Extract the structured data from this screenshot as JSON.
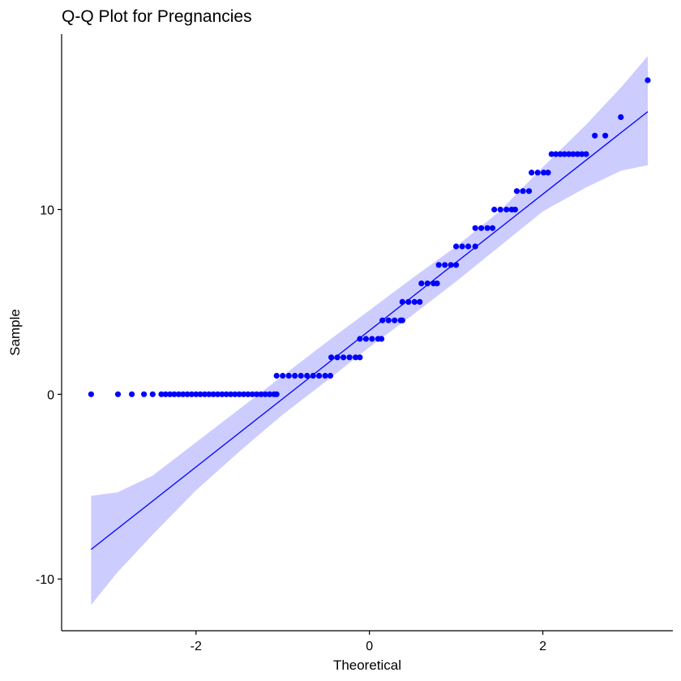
{
  "chart_data": {
    "type": "scatter",
    "title": "Q-Q Plot for Pregnancies",
    "xlabel": "Theoretical",
    "ylabel": "Sample",
    "xlim": [
      -3.55,
      3.5
    ],
    "ylim": [
      -12.8,
      19.5
    ],
    "x_ticks": [
      {
        "v": -2,
        "label": "-2"
      },
      {
        "v": 0,
        "label": "0"
      },
      {
        "v": 2,
        "label": "2"
      }
    ],
    "y_ticks": [
      {
        "v": -10,
        "label": "-10"
      },
      {
        "v": 0,
        "label": "0"
      },
      {
        "v": 10,
        "label": "10"
      }
    ],
    "grid": false,
    "colors": {
      "points": "#0000ff",
      "line": "#0000ff",
      "band": "#ccccff"
    },
    "reference_line": {
      "x": [
        -3.21,
        3.21
      ],
      "y": [
        -8.4,
        15.3
      ]
    },
    "confidence_band": {
      "x": [
        -3.21,
        -2.9,
        -2.5,
        -2.0,
        -1.5,
        -1.0,
        -0.5,
        0.0,
        0.5,
        1.0,
        1.5,
        2.0,
        2.5,
        2.9,
        3.21
      ],
      "lower": [
        -11.4,
        -9.6,
        -7.6,
        -5.2,
        -3.1,
        -1.1,
        0.7,
        2.55,
        4.3,
        6.1,
        8.0,
        9.9,
        11.2,
        12.1,
        12.4
      ],
      "upper": [
        -5.5,
        -5.3,
        -4.4,
        -2.6,
        -0.8,
        1.0,
        2.8,
        4.55,
        6.3,
        8.0,
        9.9,
        12.3,
        14.6,
        16.6,
        18.3
      ]
    },
    "series": [
      {
        "points": [
          [
            -3.21,
            0
          ],
          [
            -2.9,
            0
          ],
          [
            -2.74,
            0
          ],
          [
            -2.6,
            0
          ],
          [
            -2.5,
            0
          ],
          [
            -2.4,
            0
          ],
          [
            -2.35,
            0
          ],
          [
            -2.3,
            0
          ],
          [
            -2.25,
            0
          ],
          [
            -2.2,
            0
          ],
          [
            -2.15,
            0
          ],
          [
            -2.1,
            0
          ],
          [
            -2.05,
            0
          ],
          [
            -2.0,
            0
          ],
          [
            -1.95,
            0
          ],
          [
            -1.9,
            0
          ],
          [
            -1.85,
            0
          ],
          [
            -1.8,
            0
          ],
          [
            -1.75,
            0
          ],
          [
            -1.7,
            0
          ],
          [
            -1.65,
            0
          ],
          [
            -1.6,
            0
          ],
          [
            -1.55,
            0
          ],
          [
            -1.5,
            0
          ],
          [
            -1.45,
            0
          ],
          [
            -1.4,
            0
          ],
          [
            -1.35,
            0
          ],
          [
            -1.3,
            0
          ],
          [
            -1.25,
            0
          ],
          [
            -1.2,
            0
          ],
          [
            -1.15,
            0
          ],
          [
            -1.1,
            0
          ],
          [
            -1.07,
            0
          ],
          [
            -1.07,
            1
          ],
          [
            -1.0,
            1
          ],
          [
            -0.93,
            1
          ],
          [
            -0.86,
            1
          ],
          [
            -0.79,
            1
          ],
          [
            -0.72,
            1
          ],
          [
            -0.65,
            1
          ],
          [
            -0.58,
            1
          ],
          [
            -0.51,
            1
          ],
          [
            -0.45,
            1
          ],
          [
            -0.44,
            2
          ],
          [
            -0.37,
            2
          ],
          [
            -0.3,
            2
          ],
          [
            -0.23,
            2
          ],
          [
            -0.16,
            2
          ],
          [
            -0.11,
            2
          ],
          [
            -0.11,
            3
          ],
          [
            -0.04,
            3
          ],
          [
            0.03,
            3
          ],
          [
            0.1,
            3
          ],
          [
            0.14,
            3
          ],
          [
            0.15,
            4
          ],
          [
            0.22,
            4
          ],
          [
            0.29,
            4
          ],
          [
            0.36,
            4
          ],
          [
            0.38,
            4
          ],
          [
            0.38,
            5
          ],
          [
            0.45,
            5
          ],
          [
            0.52,
            5
          ],
          [
            0.58,
            5
          ],
          [
            0.6,
            6
          ],
          [
            0.67,
            6
          ],
          [
            0.74,
            6
          ],
          [
            0.78,
            6
          ],
          [
            0.8,
            7
          ],
          [
            0.87,
            7
          ],
          [
            0.94,
            7
          ],
          [
            1.0,
            7
          ],
          [
            1.0,
            8
          ],
          [
            1.07,
            8
          ],
          [
            1.14,
            8
          ],
          [
            1.22,
            8
          ],
          [
            1.22,
            9
          ],
          [
            1.29,
            9
          ],
          [
            1.36,
            9
          ],
          [
            1.42,
            9
          ],
          [
            1.44,
            10
          ],
          [
            1.51,
            10
          ],
          [
            1.58,
            10
          ],
          [
            1.64,
            10
          ],
          [
            1.68,
            10
          ],
          [
            1.7,
            11
          ],
          [
            1.77,
            11
          ],
          [
            1.84,
            11
          ],
          [
            1.87,
            12
          ],
          [
            1.94,
            12
          ],
          [
            2.01,
            12
          ],
          [
            2.06,
            12
          ],
          [
            2.1,
            13
          ],
          [
            2.15,
            13
          ],
          [
            2.2,
            13
          ],
          [
            2.25,
            13
          ],
          [
            2.3,
            13
          ],
          [
            2.35,
            13
          ],
          [
            2.4,
            13
          ],
          [
            2.45,
            13
          ],
          [
            2.5,
            13
          ],
          [
            2.6,
            14
          ],
          [
            2.72,
            14
          ],
          [
            2.9,
            15
          ],
          [
            3.21,
            17
          ]
        ]
      }
    ]
  }
}
